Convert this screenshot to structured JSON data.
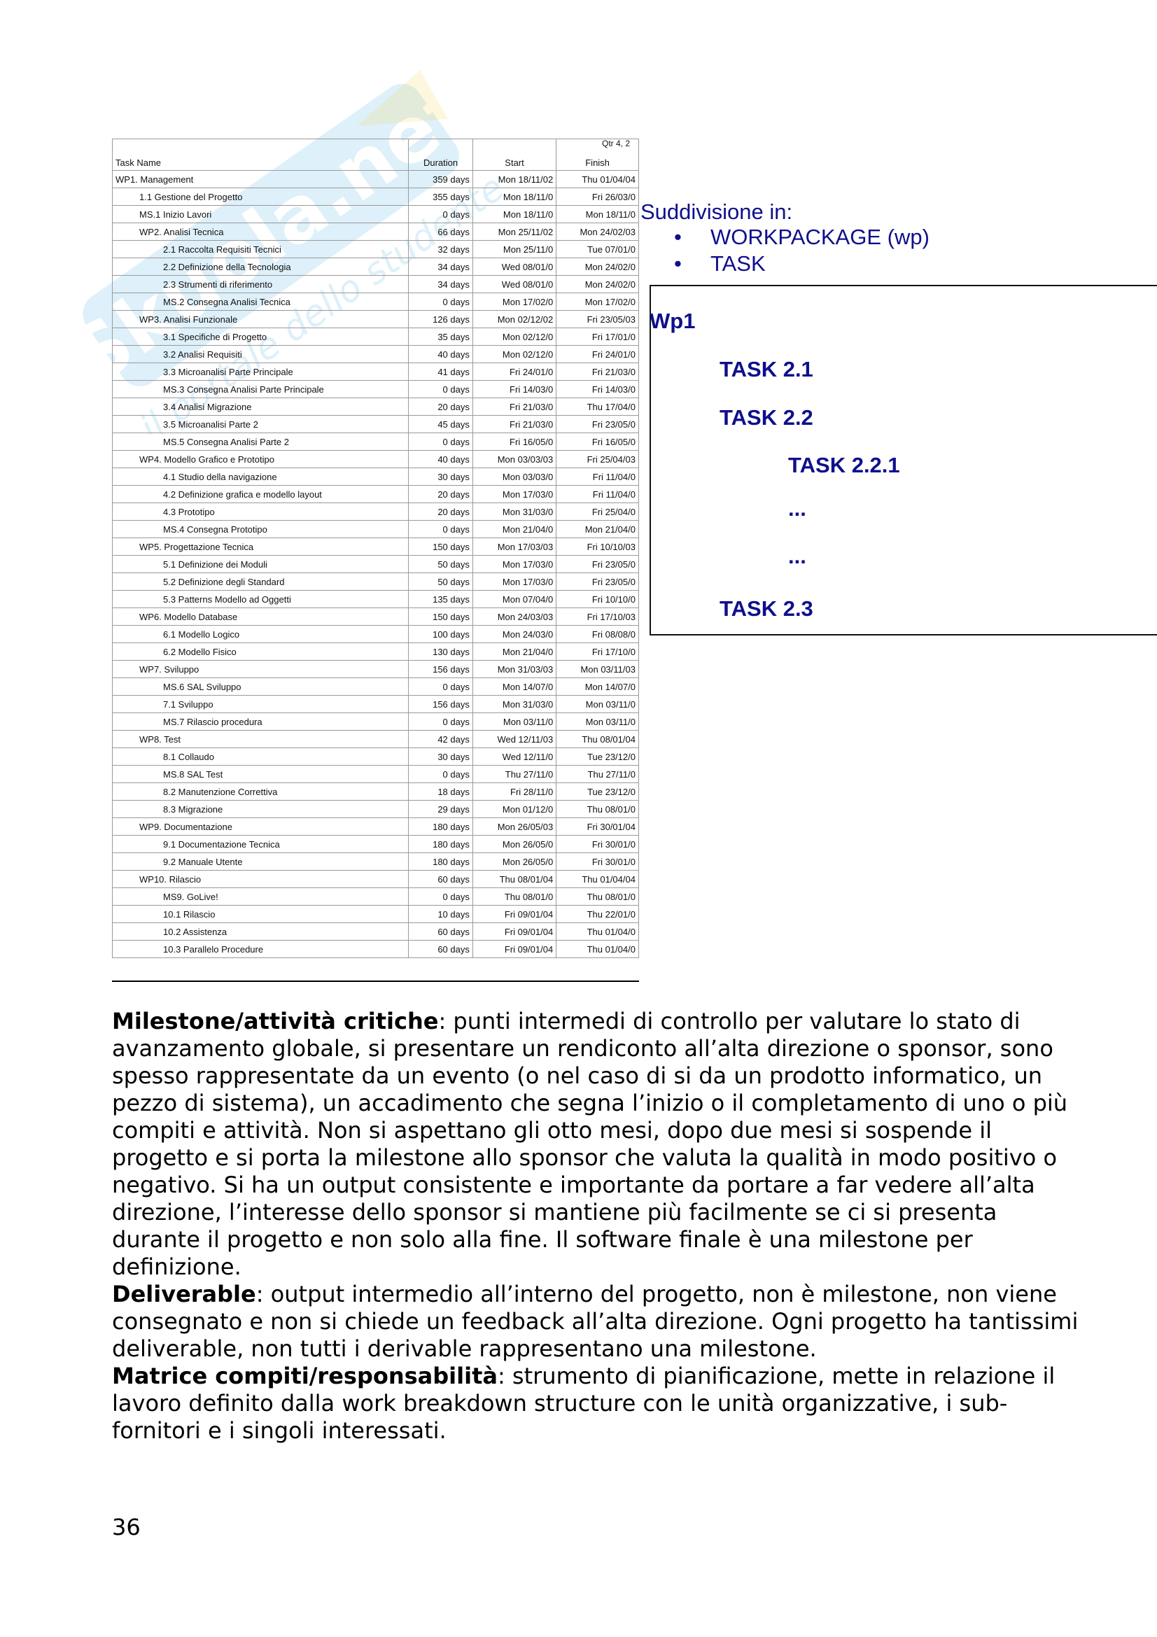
{
  "watermark": {
    "text": "Skuola.net",
    "subtext": "il portale dello studente",
    "color": "#3aa7dc"
  },
  "gantt": {
    "headers": {
      "name": "Task Name",
      "duration": "Duration",
      "start": "Start",
      "finish": "Finish",
      "quarter": "Qtr 4, 2"
    },
    "rows": [
      {
        "level": 0,
        "name": "WP1. Management",
        "duration": "359 days",
        "start": "Mon 18/11/02",
        "finish": "Thu 01/04/04"
      },
      {
        "level": 1,
        "name": "1.1 Gestione del Progetto",
        "duration": "355 days",
        "start": "Mon 18/11/0",
        "finish": "Fri 26/03/0"
      },
      {
        "level": 1,
        "name": "MS.1 Inizio Lavori",
        "duration": "0 days",
        "start": "Mon 18/11/0",
        "finish": "Mon 18/11/0"
      },
      {
        "level": 1,
        "name": "WP2. Analisi Tecnica",
        "duration": "66 days",
        "start": "Mon 25/11/02",
        "finish": "Mon 24/02/03"
      },
      {
        "level": 2,
        "name": "2.1 Raccolta Requisiti Tecnici",
        "duration": "32 days",
        "start": "Mon 25/11/0",
        "finish": "Tue 07/01/0"
      },
      {
        "level": 2,
        "name": "2.2 Definizione della Tecnologia",
        "duration": "34 days",
        "start": "Wed 08/01/0",
        "finish": "Mon 24/02/0"
      },
      {
        "level": 2,
        "name": "2.3 Strumenti di riferimento",
        "duration": "34 days",
        "start": "Wed 08/01/0",
        "finish": "Mon 24/02/0"
      },
      {
        "level": 2,
        "name": "MS.2 Consegna Analisi Tecnica",
        "duration": "0 days",
        "start": "Mon 17/02/0",
        "finish": "Mon 17/02/0"
      },
      {
        "level": 1,
        "name": "WP3. Analisi Funzionale",
        "duration": "126 days",
        "start": "Mon 02/12/02",
        "finish": "Fri 23/05/03"
      },
      {
        "level": 2,
        "name": "3.1 Specifiche di Progetto",
        "duration": "35 days",
        "start": "Mon 02/12/0",
        "finish": "Fri 17/01/0"
      },
      {
        "level": 2,
        "name": "3.2 Analisi Requisiti",
        "duration": "40 days",
        "start": "Mon 02/12/0",
        "finish": "Fri 24/01/0"
      },
      {
        "level": 2,
        "name": "3.3 Microanalisi Parte Principale",
        "duration": "41 days",
        "start": "Fri 24/01/0",
        "finish": "Fri 21/03/0"
      },
      {
        "level": 2,
        "name": "MS.3 Consegna Analisi Parte Principale",
        "duration": "0 days",
        "start": "Fri 14/03/0",
        "finish": "Fri 14/03/0"
      },
      {
        "level": 2,
        "name": "3.4 Analisi Migrazione",
        "duration": "20 days",
        "start": "Fri 21/03/0",
        "finish": "Thu 17/04/0"
      },
      {
        "level": 2,
        "name": "3.5 Microanalisi Parte 2",
        "duration": "45 days",
        "start": "Fri 21/03/0",
        "finish": "Fri 23/05/0"
      },
      {
        "level": 2,
        "name": "MS.5 Consegna Analisi Parte 2",
        "duration": "0 days",
        "start": "Fri 16/05/0",
        "finish": "Fri 16/05/0"
      },
      {
        "level": 1,
        "name": "WP4. Modello Grafico e Prototipo",
        "duration": "40 days",
        "start": "Mon 03/03/03",
        "finish": "Fri 25/04/03"
      },
      {
        "level": 2,
        "name": "4.1 Studio della navigazione",
        "duration": "30 days",
        "start": "Mon 03/03/0",
        "finish": "Fri 11/04/0"
      },
      {
        "level": 2,
        "name": "4.2 Definizione grafica e modello layout",
        "duration": "20 days",
        "start": "Mon 17/03/0",
        "finish": "Fri 11/04/0"
      },
      {
        "level": 2,
        "name": "4.3 Prototipo",
        "duration": "20 days",
        "start": "Mon 31/03/0",
        "finish": "Fri 25/04/0"
      },
      {
        "level": 2,
        "name": "MS.4 Consegna Prototipo",
        "duration": "0 days",
        "start": "Mon 21/04/0",
        "finish": "Mon 21/04/0"
      },
      {
        "level": 1,
        "name": "WP5. Progettazione Tecnica",
        "duration": "150 days",
        "start": "Mon 17/03/03",
        "finish": "Fri 10/10/03"
      },
      {
        "level": 2,
        "name": "5.1 Definizione dei Moduli",
        "duration": "50 days",
        "start": "Mon 17/03/0",
        "finish": "Fri 23/05/0"
      },
      {
        "level": 2,
        "name": "5.2 Definizione degli Standard",
        "duration": "50 days",
        "start": "Mon 17/03/0",
        "finish": "Fri 23/05/0"
      },
      {
        "level": 2,
        "name": "5.3 Patterns Modello ad Oggetti",
        "duration": "135 days",
        "start": "Mon 07/04/0",
        "finish": "Fri 10/10/0"
      },
      {
        "level": 1,
        "name": "WP6. Modello Database",
        "duration": "150 days",
        "start": "Mon 24/03/03",
        "finish": "Fri 17/10/03"
      },
      {
        "level": 2,
        "name": "6.1 Modello Logico",
        "duration": "100 days",
        "start": "Mon 24/03/0",
        "finish": "Fri 08/08/0"
      },
      {
        "level": 2,
        "name": "6.2 Modello Fisico",
        "duration": "130 days",
        "start": "Mon 21/04/0",
        "finish": "Fri 17/10/0"
      },
      {
        "level": 1,
        "name": "WP7. Sviluppo",
        "duration": "156 days",
        "start": "Mon 31/03/03",
        "finish": "Mon 03/11/03"
      },
      {
        "level": 2,
        "name": "MS.6 SAL Sviluppo",
        "duration": "0 days",
        "start": "Mon 14/07/0",
        "finish": "Mon 14/07/0"
      },
      {
        "level": 2,
        "name": "7.1 Sviluppo",
        "duration": "156 days",
        "start": "Mon 31/03/0",
        "finish": "Mon 03/11/0"
      },
      {
        "level": 2,
        "name": "MS.7 Rilascio procedura",
        "duration": "0 days",
        "start": "Mon 03/11/0",
        "finish": "Mon 03/11/0"
      },
      {
        "level": 1,
        "name": "WP8. Test",
        "duration": "42 days",
        "start": "Wed 12/11/03",
        "finish": "Thu 08/01/04"
      },
      {
        "level": 2,
        "name": "8.1 Collaudo",
        "duration": "30 days",
        "start": "Wed 12/11/0",
        "finish": "Tue 23/12/0"
      },
      {
        "level": 2,
        "name": "MS.8 SAL Test",
        "duration": "0 days",
        "start": "Thu 27/11/0",
        "finish": "Thu 27/11/0"
      },
      {
        "level": 2,
        "name": "8.2 Manutenzione Correttiva",
        "duration": "18 days",
        "start": "Fri 28/11/0",
        "finish": "Tue 23/12/0"
      },
      {
        "level": 2,
        "name": "8.3 Migrazione",
        "duration": "29 days",
        "start": "Mon 01/12/0",
        "finish": "Thu 08/01/0"
      },
      {
        "level": 1,
        "name": "WP9. Documentazione",
        "duration": "180 days",
        "start": "Mon 26/05/03",
        "finish": "Fri 30/01/04"
      },
      {
        "level": 2,
        "name": "9.1 Documentazione Tecnica",
        "duration": "180 days",
        "start": "Mon 26/05/0",
        "finish": "Fri 30/01/0"
      },
      {
        "level": 2,
        "name": "9.2 Manuale Utente",
        "duration": "180 days",
        "start": "Mon 26/05/0",
        "finish": "Fri 30/01/0"
      },
      {
        "level": 1,
        "name": "WP10. Rilascio",
        "duration": "60 days",
        "start": "Thu 08/01/04",
        "finish": "Thu 01/04/04"
      },
      {
        "level": 2,
        "name": "MS9. GoLive!",
        "duration": "0 days",
        "start": "Thu 08/01/0",
        "finish": "Thu 08/01/0"
      },
      {
        "level": 2,
        "name": "10.1 Rilascio",
        "duration": "10 days",
        "start": "Fri 09/01/04",
        "finish": "Thu 22/01/0"
      },
      {
        "level": 2,
        "name": "10.2 Assistenza",
        "duration": "60 days",
        "start": "Fri 09/01/04",
        "finish": "Thu 01/04/0"
      },
      {
        "level": 2,
        "name": "10.3 Parallelo Procedure",
        "duration": "60 days",
        "start": "Fri 09/01/04",
        "finish": "Thu 01/04/0"
      }
    ]
  },
  "side": {
    "title": "Suddivisione in:",
    "bullets": [
      "WORKPACKAGE (wp)",
      "TASK"
    ],
    "color": "#0f0f8c",
    "box": {
      "wp": "Wp1",
      "t21": "TASK 2.1",
      "t22": "TASK 2.2",
      "t221": "TASK 2.2.1",
      "dots1": "...",
      "dots2": "...",
      "t23": "TASK 2.3"
    }
  },
  "body": {
    "p1_bold": "Milestone/attività critiche",
    "p1_text": ": punti intermedi di controllo per valutare lo stato di avanzamento globale, si presentare un rendiconto all’alta direzione o sponsor, sono spesso rappresentate da un evento (o nel caso di si da un prodotto informatico, un pezzo di sistema), un accadimento che segna l’inizio o il completamento di uno o più compiti e attività. Non si aspettano gli otto mesi, dopo due mesi si sospende il progetto e si porta la milestone allo sponsor che valuta la qualità in modo positivo o negativo. Si ha un output consistente e importante da portare a far vedere all’alta direzione, l’interesse dello sponsor si mantiene più facilmente se ci si presenta durante il progetto e non solo alla fine. Il software finale è una milestone per definizione.",
    "p2_bold": "Deliverable",
    "p2_text": ": output intermedio all’interno del progetto, non è milestone, non viene consegnato e non si chiede un feedback all’alta direzione. Ogni progetto ha tantissimi deliverable, non tutti i derivable rappresentano una milestone.",
    "p3_bold": "Matrice compiti/responsabilità",
    "p3_text": ": strumento di pianificazione, mette in relazione il lavoro definito dalla work breakdown structure con le unità organizzative, i sub-fornitori e i singoli interessati."
  },
  "page_number": "36"
}
